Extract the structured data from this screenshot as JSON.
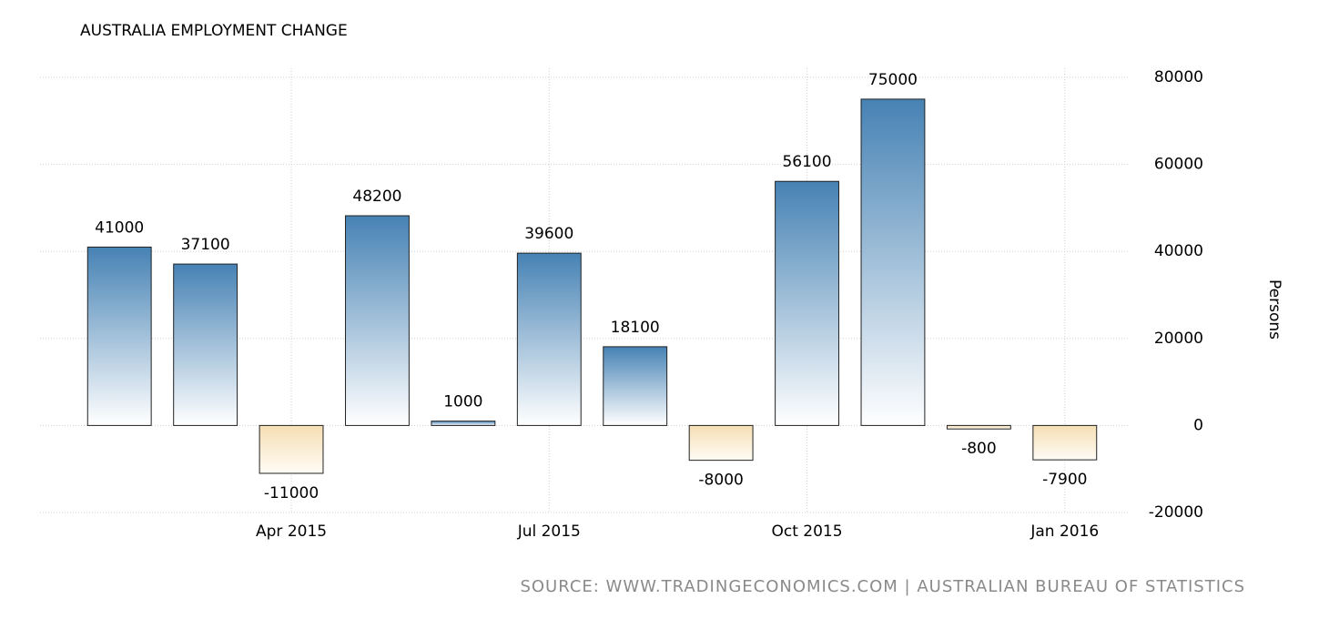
{
  "chart_data": {
    "type": "bar",
    "title": "AUSTRALIA EMPLOYMENT CHANGE",
    "y_label": "Persons",
    "source": "SOURCE: WWW.TRADINGECONOMICS.COM | AUSTRALIAN BUREAU OF STATISTICS",
    "categories": [
      null,
      null,
      "Apr 2015",
      null,
      null,
      "Jul 2015",
      null,
      null,
      "Oct 2015",
      null,
      null,
      "Jan 2016"
    ],
    "values": [
      41000,
      37100,
      -11000,
      48200,
      1000,
      39600,
      18100,
      -8000,
      56100,
      75000,
      -800,
      -7900
    ],
    "color": "#4682b4",
    "negative_color": "#f5deb3",
    "ylim": [
      -20000,
      80000
    ],
    "yticks": [
      -20000,
      0,
      20000,
      40000,
      60000,
      80000
    ],
    "grid": true,
    "y_axis_side": "right"
  }
}
